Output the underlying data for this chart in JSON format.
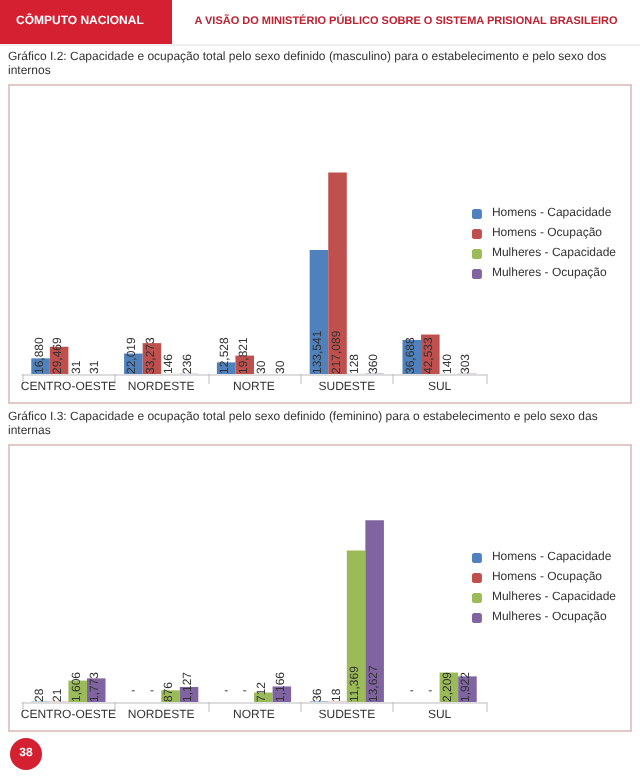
{
  "chart_data": [
    {
      "type": "bar",
      "title": "Gráfico I.2: Capacidade e ocupação total pelo sexo definido (masculino) para o estabelecimento e pelo sexo dos internos",
      "annotations": [
        "CÔMPUTO NACIONAL",
        "A VISÃO DO MINISTÉRIO PÚBLICO SOBRE O SISTEMA PRISIONAL BRASILEIRO"
      ],
      "categories": [
        "CENTRO-OESTE",
        "NORDESTE",
        "NORTE",
        "SUDESTE",
        "SUL"
      ],
      "series": [
        {
          "name": "Homens - Capacidade",
          "color": "#4f81bd",
          "values": [
            16880,
            22019,
            12528,
            133541,
            36688
          ],
          "value_labels": [
            "16,880",
            "22,019",
            "12,528",
            "133,541",
            "36,688"
          ]
        },
        {
          "name": "Homens - Ocupação",
          "color": "#c0504d",
          "values": [
            29469,
            33273,
            19821,
            217089,
            42533
          ],
          "value_labels": [
            "29,469",
            "33,273",
            "19,821",
            "217,089",
            "42,533"
          ]
        },
        {
          "name": "Mulheres - Capacidade",
          "color": "#9bbb59",
          "values": [
            31,
            146,
            30,
            128,
            140
          ],
          "value_labels": [
            "31",
            "146",
            "30",
            "128",
            "140"
          ]
        },
        {
          "name": "Mulheres - Ocupação",
          "color": "#8064a2",
          "values": [
            31,
            236,
            30,
            360,
            303
          ],
          "value_labels": [
            "31",
            "236",
            "30",
            "360",
            "303"
          ]
        }
      ],
      "legend": "right"
    },
    {
      "type": "bar",
      "title": "Gráfico I.3: Capacidade e ocupação total pelo sexo definido (feminino) para o estabelecimento e pelo sexo das internas",
      "annotations": [
        "38"
      ],
      "categories": [
        "CENTRO-OESTE",
        "NORDESTE",
        "NORTE",
        "SUDESTE",
        "SUL"
      ],
      "series": [
        {
          "name": "Homens - Capacidade",
          "color": "#4f81bd",
          "values": [
            28,
            null,
            null,
            36,
            null
          ],
          "value_labels": [
            "28",
            "-",
            "-",
            "36",
            "-"
          ]
        },
        {
          "name": "Homens - Ocupação",
          "color": "#c0504d",
          "values": [
            21,
            null,
            null,
            18,
            null
          ],
          "value_labels": [
            "21",
            "-",
            "-",
            "18",
            "-"
          ]
        },
        {
          "name": "Mulheres - Capacidade",
          "color": "#9bbb59",
          "values": [
            1606,
            876,
            712,
            11369,
            2209
          ],
          "value_labels": [
            "1,606",
            "876",
            "712",
            "11,369",
            "2,209"
          ]
        },
        {
          "name": "Mulheres - Ocupação",
          "color": "#8064a2",
          "values": [
            1773,
            1127,
            1166,
            13627,
            1922
          ],
          "value_labels": [
            "1,773",
            "1,127",
            "1,166",
            "13,627",
            "1,922"
          ]
        }
      ],
      "legend": "right"
    }
  ]
}
